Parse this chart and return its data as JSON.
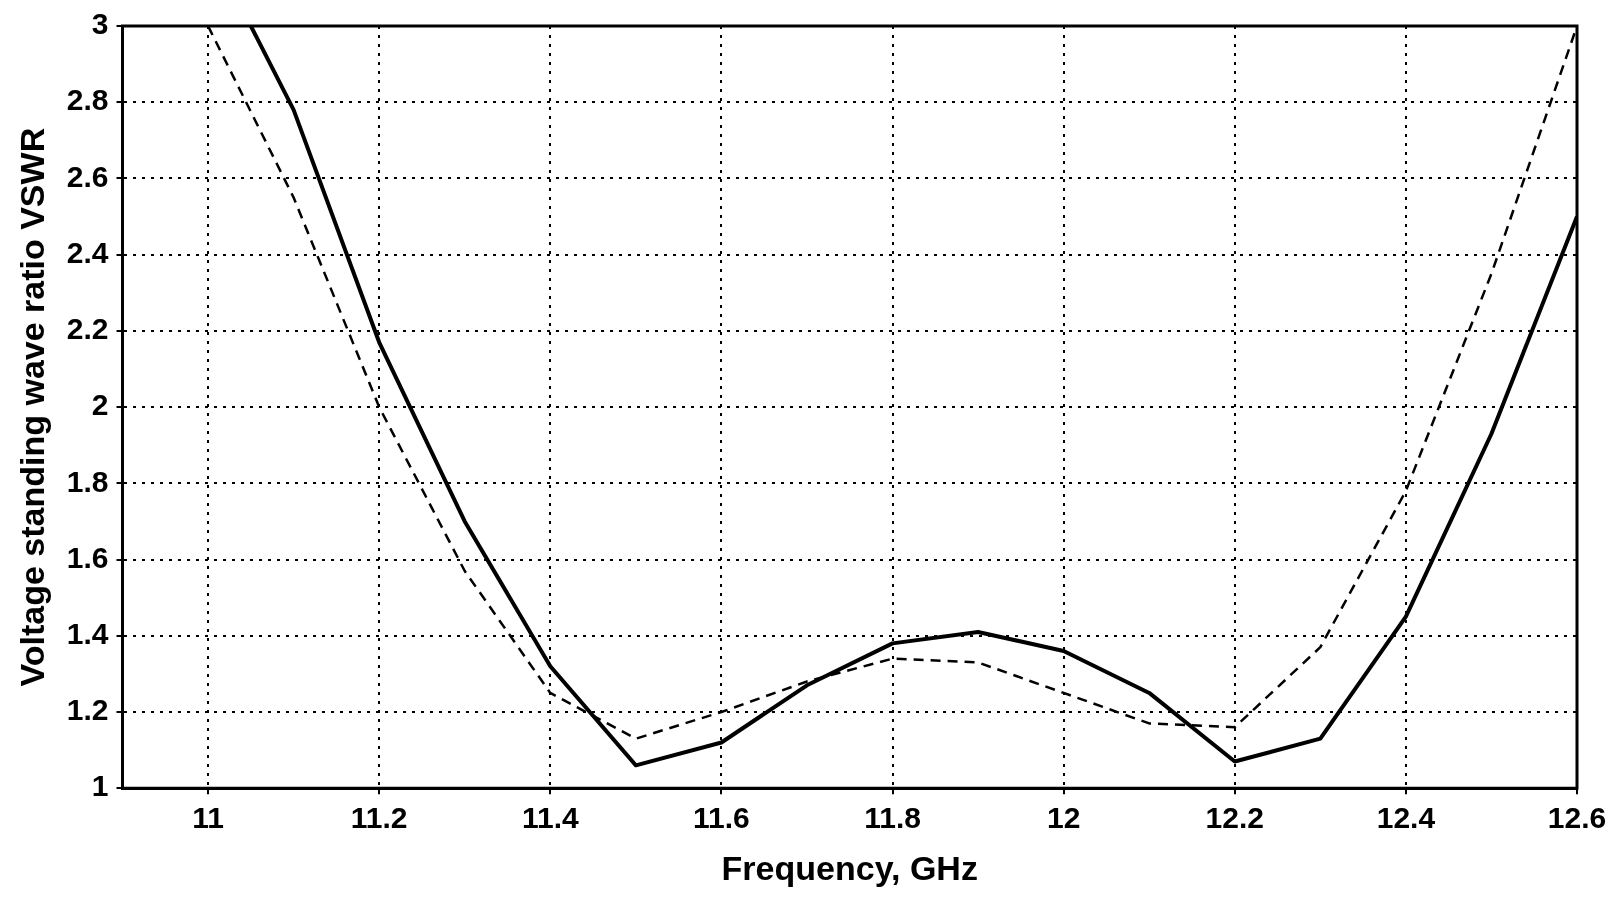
{
  "chart_data": {
    "type": "line",
    "xlabel": "Frequency, GHz",
    "ylabel": "Voltage standing wave ratio VSWR",
    "xlim": [
      10.9,
      12.6
    ],
    "xticks": [
      11,
      11.2,
      11.4,
      11.6,
      11.8,
      12,
      12.2,
      12.4,
      12.6
    ],
    "ylim": [
      1,
      3
    ],
    "yticks": [
      1,
      1.2,
      1.4,
      1.6,
      1.8,
      2,
      2.2,
      2.4,
      2.6,
      2.8,
      3
    ],
    "grid": true,
    "legend": false,
    "marker": "none",
    "series": [
      {
        "color": "#000000",
        "line_style": "solid",
        "x": [
          11.05,
          11.1,
          11.2,
          11.3,
          11.4,
          11.5,
          11.6,
          11.7,
          11.8,
          11.9,
          12.0,
          12.1,
          12.2,
          12.3,
          12.4,
          12.5,
          12.6
        ],
        "values": [
          3,
          2.78,
          2.17,
          1.7,
          1.32,
          1.06,
          1.12,
          1.27,
          1.38,
          1.41,
          1.36,
          1.25,
          1.07,
          1.13,
          1.45,
          1.93,
          2.5
        ]
      },
      {
        "color": "#000000",
        "line_style": "dashed",
        "x": [
          11.0,
          11.1,
          11.2,
          11.3,
          11.4,
          11.5,
          11.6,
          11.7,
          11.8,
          11.9,
          12.0,
          12.1,
          12.2,
          12.3,
          12.4,
          12.5,
          12.6
        ],
        "values": [
          3,
          2.55,
          2.0,
          1.57,
          1.25,
          1.13,
          1.2,
          1.28,
          1.34,
          1.33,
          1.25,
          1.17,
          1.16,
          1.37,
          1.78,
          2.35,
          3
        ]
      }
    ]
  }
}
